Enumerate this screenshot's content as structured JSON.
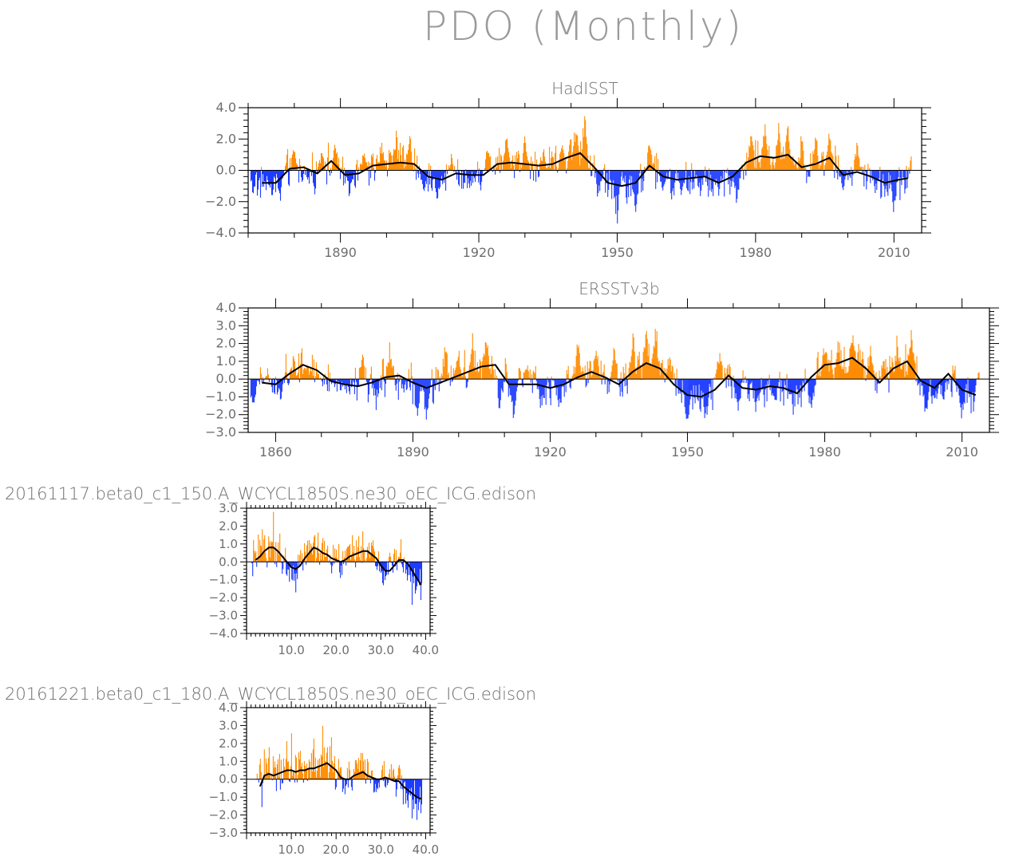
{
  "title": "PDO (Monthly)",
  "colors": {
    "positive": "#ff8c00",
    "negative": "#1e3cff",
    "smooth": "#000000",
    "axis": "#000000",
    "text": "#7a7a7a"
  },
  "chart_data": [
    {
      "id": "hadisst",
      "type": "bar",
      "title": "HadISST",
      "xlabel": "",
      "ylabel": "",
      "xlim": [
        1870,
        2016
      ],
      "ylim": [
        -4.0,
        4.0
      ],
      "yticks": [
        -4.0,
        -2.0,
        0.0,
        2.0,
        4.0
      ],
      "ytick_labels": [
        "−4.0",
        "−2.0",
        "0.0",
        "2.0",
        "4.0"
      ],
      "xticks": [
        1890,
        1920,
        1950,
        1980,
        2010
      ],
      "xtick_labels": [
        "1890",
        "1920",
        "1950",
        "1980",
        "2010"
      ],
      "grid": false,
      "series_type": "monthly bars colored by sign with smoothed black line",
      "smooth_x": [
        1873,
        1876,
        1879,
        1882,
        1885,
        1888,
        1891,
        1894,
        1897,
        1900,
        1903,
        1906,
        1909,
        1912,
        1915,
        1918,
        1921,
        1924,
        1927,
        1930,
        1933,
        1936,
        1939,
        1942,
        1945,
        1948,
        1951,
        1954,
        1957,
        1960,
        1963,
        1966,
        1969,
        1972,
        1975,
        1978,
        1981,
        1984,
        1987,
        1990,
        1993,
        1996,
        1999,
        2002,
        2005,
        2008,
        2011,
        2013
      ],
      "smooth_y": [
        -0.8,
        -0.8,
        0.1,
        0.2,
        -0.2,
        0.6,
        -0.3,
        -0.2,
        0.3,
        0.4,
        0.5,
        0.4,
        -0.4,
        -0.6,
        -0.2,
        -0.3,
        -0.3,
        0.4,
        0.5,
        0.4,
        0.3,
        0.4,
        0.8,
        1.1,
        0.2,
        -0.8,
        -1.0,
        -0.8,
        0.3,
        -0.4,
        -0.6,
        -0.5,
        -0.4,
        -0.8,
        -0.4,
        0.5,
        0.9,
        0.8,
        1.0,
        0.2,
        0.4,
        0.8,
        -0.3,
        -0.1,
        -0.4,
        -0.8,
        -0.6,
        -0.5
      ],
      "peak_x": [
        1871,
        1875,
        1877,
        1880,
        1883,
        1886,
        1889,
        1892,
        1895,
        1899,
        1902,
        1905,
        1908,
        1911,
        1914,
        1918,
        1922,
        1926,
        1930,
        1934,
        1938,
        1941,
        1943,
        1946,
        1950,
        1954,
        1957,
        1960,
        1964,
        1968,
        1972,
        1976,
        1979,
        1982,
        1985,
        1987,
        1990,
        1993,
        1996,
        1999,
        2002,
        2006,
        2010,
        2014
      ],
      "peak_y": [
        -0.9,
        -1.2,
        -1.5,
        1.3,
        -0.8,
        1.5,
        1.6,
        -1.7,
        1.2,
        1.6,
        2.1,
        2.2,
        -1.5,
        -1.7,
        1.2,
        -1.2,
        2.0,
        2.3,
        2.0,
        1.4,
        1.8,
        2.6,
        3.3,
        -1.8,
        -3.2,
        -2.4,
        1.7,
        -1.2,
        -1.5,
        -1.6,
        -1.3,
        -1.9,
        2.3,
        2.7,
        2.2,
        2.7,
        1.9,
        2.2,
        2.3,
        -1.3,
        1.9,
        -1.5,
        -2.1,
        1.5
      ]
    },
    {
      "id": "ersstv3b",
      "type": "bar",
      "title": "ERSSTv3b",
      "xlabel": "",
      "ylabel": "",
      "xlim": [
        1854,
        2016
      ],
      "ylim": [
        -3.0,
        4.0
      ],
      "yticks": [
        -3.0,
        -2.0,
        -1.0,
        0.0,
        1.0,
        2.0,
        3.0,
        4.0
      ],
      "ytick_labels": [
        "−3.0",
        "−2.0",
        "−1.0",
        "0.0",
        "1.0",
        "2.0",
        "3.0",
        "4.0"
      ],
      "xticks": [
        1860,
        1890,
        1920,
        1950,
        1980,
        2010
      ],
      "xtick_labels": [
        "1860",
        "1890",
        "1920",
        "1950",
        "1980",
        "2010"
      ],
      "grid": false,
      "series_type": "monthly bars colored by sign with smoothed black line",
      "smooth_x": [
        1857,
        1860,
        1863,
        1866,
        1869,
        1872,
        1875,
        1878,
        1881,
        1884,
        1887,
        1890,
        1893,
        1896,
        1899,
        1902,
        1905,
        1908,
        1911,
        1914,
        1917,
        1920,
        1923,
        1926,
        1929,
        1932,
        1935,
        1938,
        1941,
        1944,
        1947,
        1950,
        1953,
        1956,
        1959,
        1962,
        1965,
        1968,
        1971,
        1974,
        1977,
        1980,
        1983,
        1986,
        1989,
        1992,
        1995,
        1998,
        2001,
        2004,
        2007,
        2010,
        2013
      ],
      "smooth_y": [
        -0.2,
        -0.3,
        0.3,
        0.8,
        0.5,
        -0.1,
        -0.3,
        -0.4,
        -0.2,
        0.1,
        0.2,
        -0.2,
        -0.5,
        -0.2,
        0.1,
        0.4,
        0.7,
        0.8,
        -0.3,
        -0.3,
        -0.3,
        -0.5,
        -0.3,
        0.1,
        0.4,
        0.1,
        -0.3,
        0.4,
        0.9,
        0.6,
        -0.3,
        -0.9,
        -1.0,
        -0.6,
        0.2,
        -0.5,
        -0.6,
        -0.4,
        -0.5,
        -0.8,
        0.1,
        0.8,
        0.9,
        1.2,
        0.6,
        -0.2,
        0.6,
        1.0,
        -0.1,
        -0.5,
        0.3,
        -0.6,
        -0.9
      ],
      "peak_x": [
        1855,
        1858,
        1861,
        1864,
        1867,
        1870,
        1873,
        1876,
        1879,
        1882,
        1885,
        1888,
        1891,
        1893,
        1897,
        1900,
        1903,
        1906,
        1909,
        1912,
        1915,
        1918,
        1922,
        1926,
        1930,
        1934,
        1938,
        1941,
        1943,
        1946,
        1950,
        1954,
        1957,
        1961,
        1965,
        1969,
        1973,
        1977,
        1980,
        1983,
        1986,
        1990,
        1993,
        1996,
        1999,
        2002,
        2006,
        2010,
        2014
      ],
      "peak_y": [
        -1.7,
        0.6,
        -1.0,
        0.9,
        0.4,
        -0.3,
        -0.5,
        -0.6,
        1.6,
        -1.5,
        1.9,
        -1.0,
        -1.8,
        -2.2,
        1.9,
        1.6,
        2.0,
        2.0,
        -1.7,
        -2.4,
        1.0,
        -1.4,
        -1.7,
        2.3,
        1.5,
        2.0,
        2.4,
        2.7,
        3.2,
        1.6,
        -2.8,
        -2.4,
        2.0,
        -1.7,
        -1.7,
        -1.4,
        -1.7,
        -2.0,
        1.6,
        2.0,
        2.3,
        1.7,
        1.5,
        2.1,
        2.6,
        -1.9,
        -1.6,
        -2.0,
        1.8
      ]
    },
    {
      "id": "run1",
      "type": "bar",
      "title": "20161117.beta0_c1_150.A_WCYCL1850S.ne30_oEC_ICG.edison",
      "xlabel": "",
      "ylabel": "",
      "xlim": [
        0,
        41
      ],
      "ylim": [
        -4.0,
        3.0
      ],
      "yticks": [
        -4.0,
        -3.0,
        -2.0,
        -1.0,
        0.0,
        1.0,
        2.0,
        3.0
      ],
      "ytick_labels": [
        "−4.0",
        "−3.0",
        "−2.0",
        "−1.0",
        "0.0",
        "1.0",
        "2.0",
        "3.0"
      ],
      "xticks": [
        10,
        20,
        30,
        40
      ],
      "xtick_labels": [
        "10.0",
        "20.0",
        "30.0",
        "40.0"
      ],
      "grid": false,
      "series_type": "monthly bars colored by sign with smoothed black line",
      "smooth_x": [
        2,
        3,
        4,
        5,
        6,
        7,
        8,
        9,
        10,
        11,
        12,
        13,
        14,
        15,
        16,
        17,
        18,
        19,
        20,
        21,
        22,
        23,
        24,
        25,
        26,
        27,
        28,
        29,
        30,
        31,
        32,
        33,
        34,
        35,
        36,
        37,
        38,
        39
      ],
      "smooth_y": [
        0.1,
        0.3,
        0.6,
        0.8,
        0.8,
        0.6,
        0.3,
        0.0,
        -0.3,
        -0.4,
        -0.2,
        0.2,
        0.5,
        0.8,
        0.7,
        0.5,
        0.4,
        0.2,
        0.1,
        0.0,
        0.1,
        0.3,
        0.4,
        0.5,
        0.6,
        0.6,
        0.4,
        0.2,
        -0.2,
        -0.5,
        -0.5,
        -0.2,
        0.1,
        0.1,
        -0.1,
        -0.5,
        -0.9,
        -1.3
      ],
      "peak_x": [
        1,
        2,
        3,
        4,
        5,
        6,
        7,
        8,
        9,
        10,
        11,
        12,
        13,
        14,
        15,
        16,
        17,
        18,
        19,
        20,
        21,
        22,
        23,
        24,
        25,
        26,
        27,
        28,
        29,
        30,
        31,
        32,
        33,
        34,
        35,
        36,
        37,
        38,
        39,
        40
      ],
      "peak_y": [
        -2.3,
        1.5,
        1.2,
        1.6,
        2.1,
        2.6,
        1.3,
        -0.9,
        -1.5,
        -0.8,
        -1.7,
        1.1,
        1.4,
        1.7,
        1.6,
        1.5,
        1.4,
        1.2,
        -0.8,
        1.0,
        -0.7,
        1.2,
        0.9,
        1.2,
        1.8,
        1.4,
        1.1,
        1.3,
        -0.9,
        -1.1,
        -1.3,
        1.0,
        0.8,
        1.0,
        -0.7,
        -1.2,
        -2.1,
        -2.8,
        -2.4,
        -1.9
      ]
    },
    {
      "id": "run2",
      "type": "bar",
      "title": "20161221.beta0_c1_180.A_WCYCL1850S.ne30_oEC_ICG.edison",
      "xlabel": "",
      "ylabel": "",
      "xlim": [
        0,
        41
      ],
      "ylim": [
        -3.0,
        4.0
      ],
      "yticks": [
        -3.0,
        -2.0,
        -1.0,
        0.0,
        1.0,
        2.0,
        3.0,
        4.0
      ],
      "ytick_labels": [
        "−3.0",
        "−2.0",
        "−1.0",
        "0.0",
        "1.0",
        "2.0",
        "3.0",
        "4.0"
      ],
      "xticks": [
        10,
        20,
        30,
        40
      ],
      "xtick_labels": [
        "10.0",
        "20.0",
        "30.0",
        "40.0"
      ],
      "grid": false,
      "series_type": "monthly bars colored by sign with smoothed black line",
      "smooth_x": [
        3,
        4,
        5,
        6,
        7,
        8,
        9,
        10,
        11,
        12,
        13,
        14,
        15,
        16,
        17,
        18,
        19,
        20,
        21,
        22,
        23,
        24,
        25,
        26,
        27,
        28,
        29,
        30,
        31,
        32,
        33,
        34,
        35,
        36,
        37,
        38,
        39
      ],
      "smooth_y": [
        -0.4,
        0.2,
        0.3,
        0.2,
        0.3,
        0.4,
        0.5,
        0.5,
        0.4,
        0.5,
        0.5,
        0.6,
        0.6,
        0.7,
        0.8,
        0.9,
        0.7,
        0.5,
        0.1,
        0.0,
        0.0,
        0.2,
        0.3,
        0.4,
        0.2,
        0.1,
        0.0,
        0.0,
        0.1,
        0.0,
        -0.1,
        -0.1,
        -0.4,
        -0.6,
        -0.8,
        -1.0,
        -1.1
      ],
      "peak_x": [
        1,
        2,
        3,
        4,
        5,
        6,
        7,
        8,
        9,
        10,
        11,
        12,
        13,
        14,
        15,
        16,
        17,
        18,
        19,
        20,
        21,
        22,
        23,
        24,
        25,
        26,
        27,
        28,
        29,
        30,
        31,
        32,
        33,
        34,
        35,
        36,
        37,
        38,
        39,
        40
      ],
      "peak_y": [
        -2.6,
        -1.0,
        2.3,
        1.2,
        1.9,
        1.3,
        1.5,
        -0.8,
        1.8,
        2.4,
        1.9,
        1.3,
        1.6,
        1.4,
        2.2,
        1.3,
        2.6,
        2.9,
        2.3,
        -1.3,
        0.8,
        -1.0,
        1.4,
        1.1,
        0.9,
        1.7,
        1.5,
        1.0,
        -0.9,
        0.8,
        -1.2,
        1.2,
        1.0,
        0.9,
        -1.3,
        -1.8,
        -2.3,
        -2.6,
        -2.2,
        -2.4
      ]
    }
  ]
}
